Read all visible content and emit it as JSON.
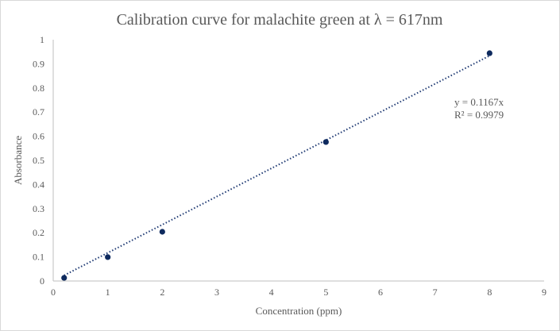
{
  "chart_data": {
    "type": "scatter",
    "title": "Calibration curve for malachite green at λ = 617nm",
    "xlabel": "Concentration (ppm)",
    "ylabel": "Absorbance",
    "xlim": [
      0,
      9
    ],
    "ylim": [
      0,
      1
    ],
    "xticks": [
      "0",
      "1",
      "2",
      "3",
      "4",
      "5",
      "6",
      "7",
      "8",
      "9"
    ],
    "yticks": [
      "0",
      "0.1",
      "0.2",
      "0.3",
      "0.4",
      "0.5",
      "0.6",
      "0.7",
      "0.8",
      "0.9",
      "1"
    ],
    "grid": false,
    "points": [
      {
        "x": 0.2,
        "y": 0.013
      },
      {
        "x": 1,
        "y": 0.099
      },
      {
        "x": 2,
        "y": 0.204
      },
      {
        "x": 5,
        "y": 0.576
      },
      {
        "x": 8,
        "y": 0.944
      }
    ],
    "trendline": {
      "type": "linear",
      "slope": 0.1167,
      "intercept": 0,
      "x_range": [
        0.2,
        8
      ]
    },
    "equation_label": "y = 0.1167x",
    "r2_label": "R² = 0.9979",
    "colors": {
      "marker": "#0e2a5e",
      "trendline": "#1f3a73",
      "axis": "#bfbfbf",
      "text": "#595959"
    }
  }
}
